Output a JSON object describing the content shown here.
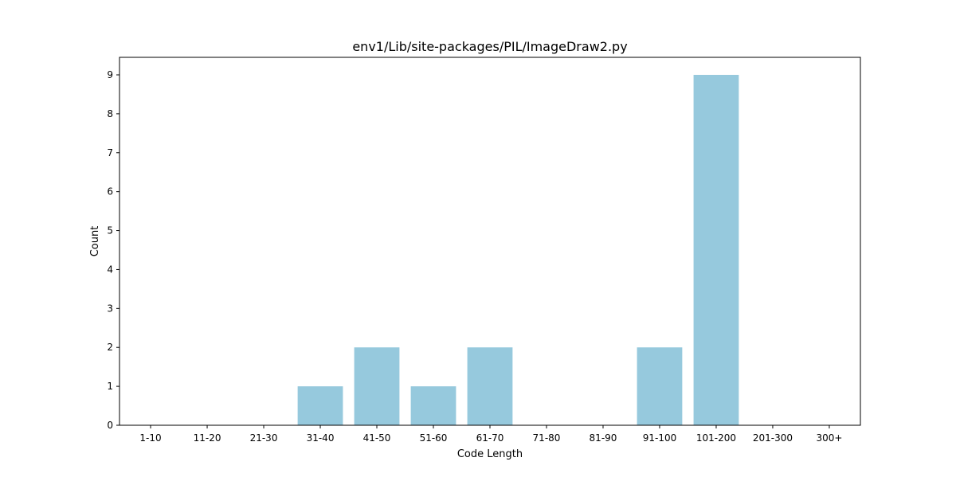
{
  "chart_data": {
    "type": "bar",
    "title": "env1/Lib/site-packages/PIL/ImageDraw2.py",
    "xlabel": "Code Length",
    "ylabel": "Count",
    "categories": [
      "1-10",
      "11-20",
      "21-30",
      "31-40",
      "41-50",
      "51-60",
      "61-70",
      "71-80",
      "81-90",
      "91-100",
      "101-200",
      "201-300",
      "300+"
    ],
    "values": [
      0,
      0,
      0,
      1,
      2,
      1,
      2,
      0,
      0,
      2,
      9,
      0,
      0
    ],
    "yticks": [
      0,
      1,
      2,
      3,
      4,
      5,
      6,
      7,
      8,
      9
    ],
    "ylim": [
      0,
      9.45
    ],
    "grid": false,
    "legend": "none",
    "bar_color": "#96c9dd",
    "axis_color": "#000000"
  }
}
